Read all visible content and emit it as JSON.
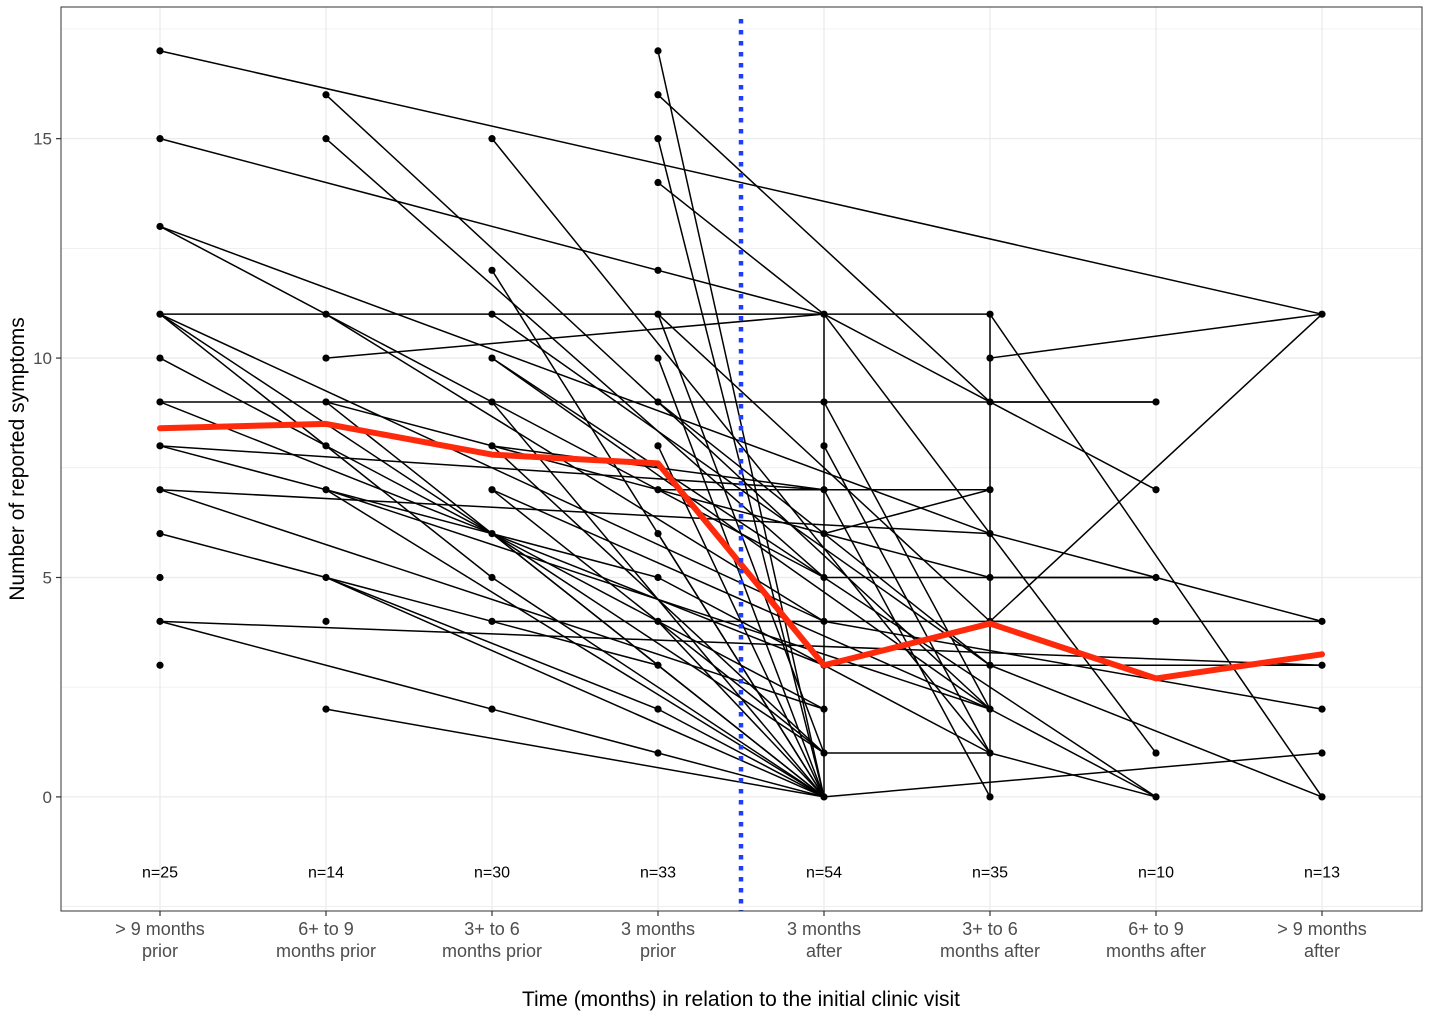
{
  "chart_data": {
    "type": "line",
    "title": "",
    "xlabel": "Time (months) in relation to the initial clinic visit",
    "ylabel": "Number of reported symptoms",
    "categories": [
      [
        "> 9 months",
        "prior"
      ],
      [
        "6+ to 9",
        "months prior"
      ],
      [
        "3+ to 6",
        "months prior"
      ],
      [
        "3 months",
        "prior"
      ],
      [
        "3 months",
        "after"
      ],
      [
        "3+  to 6",
        "months after"
      ],
      [
        "6+ to 9",
        "months after"
      ],
      [
        "> 9 months",
        "after"
      ]
    ],
    "n_labels": [
      "n=25",
      "n=14",
      "n=30",
      "n=33",
      "n=54",
      "n=35",
      "n=10",
      "n=13"
    ],
    "n_label_y": -1.7,
    "y_ticks": [
      0,
      5,
      10,
      15
    ],
    "ylim": [
      -2.6,
      18.0
    ],
    "grid": true,
    "divider_x": 3.5,
    "colors": {
      "mean": "#ff2a0c",
      "divider": "#1f3cff",
      "individual": "#000000",
      "grid": "#ebebeb",
      "panel_border": "#333333"
    },
    "mean_series": {
      "name": "",
      "values": [
        8.4,
        8.5,
        7.8,
        7.6,
        3.0,
        3.95,
        2.7,
        3.25
      ]
    },
    "points": [
      [
        0,
        17
      ],
      [
        0,
        15
      ],
      [
        0,
        13
      ],
      [
        0,
        11
      ],
      [
        0,
        10
      ],
      [
        0,
        9
      ],
      [
        0,
        8
      ],
      [
        0,
        7
      ],
      [
        0,
        6
      ],
      [
        0,
        5
      ],
      [
        0,
        4
      ],
      [
        0,
        3
      ],
      [
        1,
        16
      ],
      [
        1,
        15
      ],
      [
        1,
        11
      ],
      [
        1,
        10
      ],
      [
        1,
        9
      ],
      [
        1,
        8
      ],
      [
        1,
        7
      ],
      [
        1,
        5
      ],
      [
        1,
        4
      ],
      [
        1,
        2
      ],
      [
        2,
        15
      ],
      [
        2,
        12
      ],
      [
        2,
        11
      ],
      [
        2,
        10
      ],
      [
        2,
        9
      ],
      [
        2,
        8
      ],
      [
        2,
        7
      ],
      [
        2,
        6
      ],
      [
        2,
        5
      ],
      [
        2,
        4
      ],
      [
        2,
        2
      ],
      [
        3,
        17
      ],
      [
        3,
        16
      ],
      [
        3,
        15
      ],
      [
        3,
        14
      ],
      [
        3,
        12
      ],
      [
        3,
        11
      ],
      [
        3,
        10
      ],
      [
        3,
        9
      ],
      [
        3,
        8
      ],
      [
        3,
        7
      ],
      [
        3,
        6
      ],
      [
        3,
        5
      ],
      [
        3,
        4
      ],
      [
        3,
        3
      ],
      [
        3,
        2
      ],
      [
        3,
        1
      ],
      [
        4,
        11
      ],
      [
        4,
        9
      ],
      [
        4,
        8
      ],
      [
        4,
        7
      ],
      [
        4,
        6
      ],
      [
        4,
        5
      ],
      [
        4,
        4
      ],
      [
        4,
        3
      ],
      [
        4,
        2
      ],
      [
        4,
        1
      ],
      [
        4,
        0
      ],
      [
        5,
        11
      ],
      [
        5,
        10
      ],
      [
        5,
        9
      ],
      [
        5,
        7
      ],
      [
        5,
        6
      ],
      [
        5,
        5
      ],
      [
        5,
        4
      ],
      [
        5,
        3
      ],
      [
        5,
        2
      ],
      [
        5,
        1
      ],
      [
        5,
        0
      ],
      [
        6,
        9
      ],
      [
        6,
        7
      ],
      [
        6,
        5
      ],
      [
        6,
        4
      ],
      [
        6,
        1
      ],
      [
        6,
        0
      ],
      [
        7,
        11
      ],
      [
        7,
        4
      ],
      [
        7,
        3
      ],
      [
        7,
        2
      ],
      [
        7,
        1
      ],
      [
        7,
        0
      ]
    ],
    "segments": [
      [
        0,
        17,
        7,
        11
      ],
      [
        0,
        15,
        4,
        11
      ],
      [
        0,
        13,
        4,
        5
      ],
      [
        0,
        13,
        5,
        6
      ],
      [
        0,
        11,
        5,
        11
      ],
      [
        0,
        11,
        4,
        4
      ],
      [
        0,
        11,
        4,
        1
      ],
      [
        0,
        11,
        2,
        5
      ],
      [
        0,
        10,
        4,
        2
      ],
      [
        0,
        9,
        6,
        9
      ],
      [
        0,
        9,
        4,
        3
      ],
      [
        0,
        8,
        4,
        7
      ],
      [
        0,
        8,
        3,
        5
      ],
      [
        0,
        7,
        5,
        6
      ],
      [
        0,
        7,
        4,
        2
      ],
      [
        0,
        6,
        3,
        3
      ],
      [
        0,
        4,
        7,
        3
      ],
      [
        0,
        4,
        3,
        1
      ],
      [
        1,
        16,
        5,
        2
      ],
      [
        1,
        15,
        4,
        5
      ],
      [
        1,
        11,
        4,
        4
      ],
      [
        1,
        10,
        4,
        11
      ],
      [
        1,
        9,
        5,
        5
      ],
      [
        1,
        9,
        3,
        3
      ],
      [
        1,
        7,
        5,
        2
      ],
      [
        1,
        7,
        4,
        0
      ],
      [
        1,
        5,
        3,
        2
      ],
      [
        1,
        5,
        4,
        0
      ],
      [
        1,
        2,
        4,
        0
      ],
      [
        2,
        15,
        5,
        1
      ],
      [
        2,
        12,
        4,
        0
      ],
      [
        2,
        11,
        5,
        3
      ],
      [
        2,
        10,
        4,
        5
      ],
      [
        2,
        10,
        5,
        2
      ],
      [
        2,
        9,
        4,
        0
      ],
      [
        2,
        8,
        4,
        7
      ],
      [
        2,
        8,
        4,
        1
      ],
      [
        2,
        7,
        5,
        2
      ],
      [
        2,
        7,
        4,
        1
      ],
      [
        2,
        6,
        4,
        0
      ],
      [
        2,
        5,
        4,
        0
      ],
      [
        2,
        4,
        6,
        4
      ],
      [
        3,
        17,
        4,
        0
      ],
      [
        3,
        16,
        5,
        9
      ],
      [
        3,
        15,
        4,
        0
      ],
      [
        3,
        14,
        4,
        11
      ],
      [
        3,
        11,
        4,
        1
      ],
      [
        3,
        11,
        5,
        4
      ],
      [
        3,
        10,
        4,
        0
      ],
      [
        3,
        9,
        5,
        3
      ],
      [
        3,
        8,
        4,
        0
      ],
      [
        3,
        7,
        5,
        7
      ],
      [
        3,
        6,
        4,
        0
      ],
      [
        3,
        5,
        5,
        1
      ],
      [
        3,
        4,
        4,
        0
      ],
      [
        3,
        3,
        4,
        0
      ],
      [
        3,
        2,
        4,
        0
      ],
      [
        3,
        1,
        4,
        0
      ],
      [
        4,
        11,
        6,
        7
      ],
      [
        4,
        11,
        6,
        1
      ],
      [
        4,
        9,
        5,
        2
      ],
      [
        4,
        8,
        5,
        1
      ],
      [
        4,
        7,
        5,
        0
      ],
      [
        4,
        6,
        5,
        7
      ],
      [
        4,
        5,
        6,
        5
      ],
      [
        4,
        5,
        6,
        0
      ],
      [
        4,
        4,
        7,
        2
      ],
      [
        4,
        3,
        7,
        3
      ],
      [
        4,
        1,
        5,
        1
      ],
      [
        4,
        0,
        7,
        1
      ],
      [
        5,
        11,
        7,
        0
      ],
      [
        5,
        10,
        7,
        11
      ],
      [
        5,
        9,
        6,
        9
      ],
      [
        5,
        6,
        7,
        4
      ],
      [
        5,
        5,
        6,
        5
      ],
      [
        5,
        4,
        7,
        11
      ],
      [
        5,
        4,
        7,
        4
      ],
      [
        5,
        3,
        7,
        0
      ],
      [
        5,
        2,
        6,
        0
      ],
      [
        5,
        1,
        6,
        0
      ],
      [
        4,
        11,
        4,
        0
      ],
      [
        5,
        11,
        5,
        0
      ]
    ]
  }
}
